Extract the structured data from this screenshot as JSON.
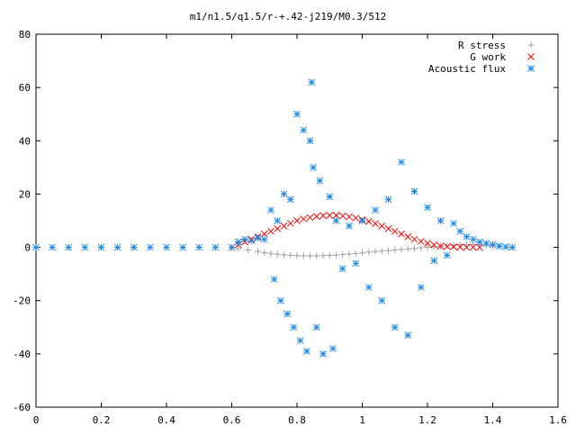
{
  "chart_data": {
    "type": "scatter",
    "title": "m1/n1.5/q1.5/r-+.42-j219/M0.3/512",
    "xlabel": "",
    "ylabel": "",
    "xlim": [
      0,
      1.6
    ],
    "ylim": [
      -60,
      80
    ],
    "x_ticks": [
      "0",
      "0.2",
      "0.4",
      "0.6",
      "0.8",
      "1",
      "1.2",
      "1.4",
      "1.6"
    ],
    "y_ticks": [
      "80",
      "60",
      "40",
      "20",
      "0",
      "-20",
      "-40",
      "-60"
    ],
    "grid": false,
    "legend_position": "top-right",
    "series": [
      {
        "name": "R stress",
        "marker": "plus",
        "color": "#a0a0a0",
        "points": [
          [
            0.0,
            0
          ],
          [
            0.1,
            0
          ],
          [
            0.2,
            0
          ],
          [
            0.3,
            0
          ],
          [
            0.4,
            0
          ],
          [
            0.5,
            0
          ],
          [
            0.6,
            0
          ],
          [
            0.62,
            -0.5
          ],
          [
            0.65,
            -1
          ],
          [
            0.68,
            -1.5
          ],
          [
            0.7,
            -2
          ],
          [
            0.72,
            -2.3
          ],
          [
            0.74,
            -2.6
          ],
          [
            0.76,
            -2.8
          ],
          [
            0.78,
            -3
          ],
          [
            0.8,
            -3.1
          ],
          [
            0.82,
            -3.2
          ],
          [
            0.84,
            -3.2
          ],
          [
            0.86,
            -3.2
          ],
          [
            0.88,
            -3.1
          ],
          [
            0.9,
            -3
          ],
          [
            0.92,
            -2.9
          ],
          [
            0.94,
            -2.7
          ],
          [
            0.96,
            -2.5
          ],
          [
            0.98,
            -2.3
          ],
          [
            1.0,
            -2.1
          ],
          [
            1.02,
            -1.8
          ],
          [
            1.04,
            -1.6
          ],
          [
            1.06,
            -1.4
          ],
          [
            1.08,
            -1.2
          ],
          [
            1.1,
            -1
          ],
          [
            1.12,
            -0.8
          ],
          [
            1.14,
            -0.6
          ],
          [
            1.16,
            -0.4
          ],
          [
            1.18,
            -0.2
          ],
          [
            1.2,
            0
          ],
          [
            1.22,
            0.2
          ],
          [
            1.24,
            0.4
          ],
          [
            1.26,
            0.6
          ],
          [
            1.28,
            0.8
          ],
          [
            1.3,
            1
          ],
          [
            1.32,
            1.1
          ],
          [
            1.34,
            1.1
          ],
          [
            1.36,
            1
          ],
          [
            1.38,
            0.8
          ],
          [
            1.4,
            0.6
          ],
          [
            1.42,
            0.4
          ],
          [
            1.44,
            0.2
          ],
          [
            1.46,
            0
          ]
        ]
      },
      {
        "name": "G work",
        "marker": "cross",
        "color": "#ff0000",
        "points": [
          [
            0.6,
            0
          ],
          [
            0.62,
            1
          ],
          [
            0.64,
            2
          ],
          [
            0.66,
            3
          ],
          [
            0.68,
            4
          ],
          [
            0.7,
            5
          ],
          [
            0.72,
            6
          ],
          [
            0.74,
            7
          ],
          [
            0.76,
            8
          ],
          [
            0.78,
            9
          ],
          [
            0.8,
            10
          ],
          [
            0.82,
            10.7
          ],
          [
            0.84,
            11.2
          ],
          [
            0.86,
            11.6
          ],
          [
            0.88,
            11.9
          ],
          [
            0.9,
            12
          ],
          [
            0.92,
            12
          ],
          [
            0.94,
            11.8
          ],
          [
            0.96,
            11.5
          ],
          [
            0.98,
            11
          ],
          [
            1.0,
            10.4
          ],
          [
            1.02,
            9.7
          ],
          [
            1.04,
            8.9
          ],
          [
            1.06,
            8
          ],
          [
            1.08,
            7
          ],
          [
            1.1,
            6
          ],
          [
            1.12,
            5
          ],
          [
            1.14,
            4
          ],
          [
            1.16,
            3
          ],
          [
            1.18,
            2.2
          ],
          [
            1.2,
            1.5
          ],
          [
            1.22,
            0.9
          ],
          [
            1.24,
            0.5
          ],
          [
            1.26,
            0.3
          ],
          [
            1.28,
            0.2
          ],
          [
            1.3,
            0.1
          ],
          [
            1.32,
            0
          ],
          [
            1.34,
            0
          ],
          [
            1.36,
            0
          ]
        ]
      },
      {
        "name": "Acoustic flux",
        "marker": "star",
        "color": "#1e88e5",
        "points": [
          [
            0.0,
            0
          ],
          [
            0.05,
            0
          ],
          [
            0.1,
            0
          ],
          [
            0.15,
            0
          ],
          [
            0.2,
            0
          ],
          [
            0.25,
            0
          ],
          [
            0.3,
            0
          ],
          [
            0.35,
            0
          ],
          [
            0.4,
            0
          ],
          [
            0.45,
            0
          ],
          [
            0.5,
            0
          ],
          [
            0.55,
            0
          ],
          [
            0.6,
            0
          ],
          [
            0.62,
            2
          ],
          [
            0.64,
            3
          ],
          [
            0.66,
            2.5
          ],
          [
            0.68,
            3.5
          ],
          [
            0.7,
            3
          ],
          [
            0.72,
            14
          ],
          [
            0.73,
            -12
          ],
          [
            0.74,
            10
          ],
          [
            0.75,
            -20
          ],
          [
            0.76,
            20
          ],
          [
            0.77,
            -25
          ],
          [
            0.78,
            18
          ],
          [
            0.79,
            -30
          ],
          [
            0.8,
            50
          ],
          [
            0.81,
            -35
          ],
          [
            0.82,
            44
          ],
          [
            0.83,
            -39
          ],
          [
            0.84,
            40
          ],
          [
            0.845,
            62
          ],
          [
            0.85,
            30
          ],
          [
            0.86,
            -30
          ],
          [
            0.87,
            25
          ],
          [
            0.88,
            -40
          ],
          [
            0.9,
            19
          ],
          [
            0.91,
            -38
          ],
          [
            0.92,
            10
          ],
          [
            0.94,
            -8
          ],
          [
            0.96,
            8
          ],
          [
            0.98,
            -6
          ],
          [
            1.0,
            10
          ],
          [
            1.02,
            -15
          ],
          [
            1.04,
            14
          ],
          [
            1.06,
            -20
          ],
          [
            1.08,
            18
          ],
          [
            1.1,
            -30
          ],
          [
            1.12,
            32
          ],
          [
            1.14,
            -33
          ],
          [
            1.16,
            21
          ],
          [
            1.18,
            -15
          ],
          [
            1.2,
            15
          ],
          [
            1.22,
            -5
          ],
          [
            1.24,
            10
          ],
          [
            1.26,
            -3
          ],
          [
            1.28,
            9
          ],
          [
            1.3,
            6
          ],
          [
            1.32,
            4
          ],
          [
            1.34,
            3
          ],
          [
            1.36,
            2
          ],
          [
            1.38,
            1.5
          ],
          [
            1.4,
            1
          ],
          [
            1.42,
            0.5
          ],
          [
            1.44,
            0.2
          ],
          [
            1.46,
            0
          ]
        ]
      }
    ]
  }
}
